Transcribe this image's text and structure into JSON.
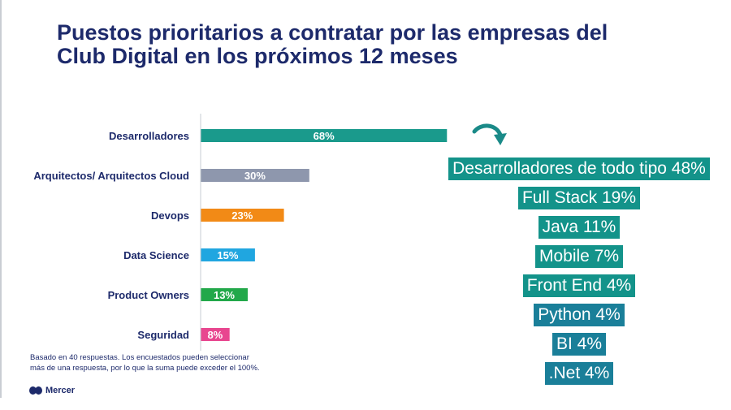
{
  "title": {
    "line1": "Puestos prioritarios a contratar por las empresas del",
    "line2": "Club Digital en los próximos 12 meses"
  },
  "chart_data": {
    "type": "bar",
    "orientation": "horizontal",
    "categories": [
      "Desarrolladores",
      "Arquitectos/ Arquitectos Cloud",
      "Devops",
      "Data Science",
      "Product Owners",
      "Seguridad"
    ],
    "values": [
      68,
      30,
      23,
      15,
      13,
      8
    ],
    "value_labels": [
      "68%",
      "30%",
      "23%",
      "15%",
      "13%",
      "8%"
    ],
    "colors": [
      "#1a9a8c",
      "#8e97ad",
      "#f28a16",
      "#20a6e0",
      "#22a84a",
      "#e8468f"
    ],
    "xlim": [
      0,
      100
    ],
    "title": "",
    "xlabel": "",
    "ylabel": ""
  },
  "breakdown": {
    "items": [
      {
        "text": "Desarrolladores de todo tipo 48%",
        "color": "#13938a"
      },
      {
        "text": "Full Stack 19%",
        "color": "#13938a"
      },
      {
        "text": "Java 11%",
        "color": "#13938a"
      },
      {
        "text": "Mobile 7%",
        "color": "#13938a"
      },
      {
        "text": "Front End 4%",
        "color": "#13938a"
      },
      {
        "text": "Python 4%",
        "color": "#1a7f99"
      },
      {
        "text": "BI 4%",
        "color": "#1a7f99"
      },
      {
        "text": ".Net 4%",
        "color": "#1a7f99"
      }
    ]
  },
  "footnote": {
    "line1": "Basado en 40 respuestas. Los encuestados pueden seleccionar",
    "line2": "más de una respuesta, por lo que la suma puede exceder el 100%."
  },
  "logo": {
    "text": "Mercer",
    "icon": "mercer-logo-icon",
    "color": "#1d2a6b"
  },
  "arrow": {
    "icon": "curved-arrow-down-icon",
    "color": "#1a8a88"
  }
}
